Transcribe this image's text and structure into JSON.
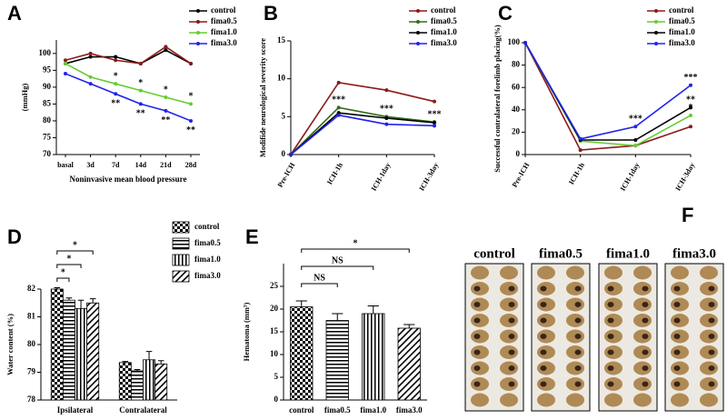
{
  "chart_data": [
    {
      "type": "line",
      "panel": "A",
      "categories": [
        "basal",
        "3d",
        "7d",
        "14d",
        "21d",
        "28d"
      ],
      "x_label": "Noninvasive mean blood pressure",
      "y_label": "(mmHg)",
      "ylim": [
        70,
        104
      ],
      "yticks": [
        70,
        75,
        80,
        85,
        90,
        95,
        100
      ],
      "series": [
        {
          "name": "control",
          "color": "#000000",
          "values": [
            97,
            99,
            99,
            97,
            101,
            97
          ]
        },
        {
          "name": "fima0.5",
          "color": "#8b1a1a",
          "values": [
            98,
            100,
            98,
            97,
            102,
            97
          ]
        },
        {
          "name": "fima1.0",
          "color": "#66cc33",
          "values": [
            97,
            93,
            91,
            89,
            87,
            85
          ],
          "marks": [
            null,
            null,
            "*",
            "*",
            "*",
            "*"
          ]
        },
        {
          "name": "fima3.0",
          "color": "#2222ee",
          "values": [
            94,
            91,
            88,
            85,
            83,
            80
          ],
          "marks": [
            null,
            null,
            "**",
            "**",
            "**",
            "**"
          ]
        }
      ]
    },
    {
      "type": "line",
      "panel": "B",
      "categories": [
        "Pre-ICH",
        "ICH-1h",
        "ICH-1day",
        "ICH-3day"
      ],
      "y_label": "Modifide neurological severity score",
      "ylim": [
        0,
        15
      ],
      "yticks": [
        0,
        5,
        10,
        15
      ],
      "series": [
        {
          "name": "control",
          "color": "#8b1a1a",
          "values": [
            0,
            9.5,
            8.5,
            7
          ]
        },
        {
          "name": "fima0.5",
          "color": "#336b1a",
          "values": [
            0,
            6.2,
            5,
            4.3
          ],
          "marks": [
            null,
            "***",
            "***",
            "***"
          ]
        },
        {
          "name": "fima1.0",
          "color": "#000000",
          "values": [
            0,
            5.5,
            4.8,
            4.2
          ]
        },
        {
          "name": "fima3.0",
          "color": "#2222ee",
          "values": [
            0,
            5.2,
            4,
            3.8
          ]
        }
      ]
    },
    {
      "type": "line",
      "panel": "C",
      "categories": [
        "Pre-ICH",
        "ICH-1h",
        "ICH-1day",
        "ICH-3day"
      ],
      "y_label": "Successful contralateral forelimb placing(%)",
      "ylim": [
        0,
        100
      ],
      "yticks": [
        0,
        20,
        40,
        60,
        80,
        100
      ],
      "series": [
        {
          "name": "control",
          "color": "#8b1a1a",
          "values": [
            100,
            4,
            8,
            25
          ]
        },
        {
          "name": "fima0.5",
          "color": "#66cc33",
          "values": [
            100,
            12,
            8,
            35
          ],
          "marks": [
            null,
            null,
            null,
            "*"
          ]
        },
        {
          "name": "fima1.0",
          "color": "#000000",
          "values": [
            100,
            13,
            13,
            42
          ],
          "marks": [
            null,
            null,
            null,
            "**"
          ]
        },
        {
          "name": "fima3.0",
          "color": "#2222ee",
          "values": [
            100,
            14,
            25,
            62
          ],
          "marks": [
            null,
            null,
            "***",
            "***"
          ]
        }
      ]
    },
    {
      "type": "grouped_bar",
      "panel": "D",
      "categories": [
        "Ipsilateral",
        "Contralateral"
      ],
      "y_label": "Water content (%)",
      "ylim": [
        78,
        82
      ],
      "yticks": [
        78,
        79,
        80,
        81,
        82
      ],
      "series": [
        {
          "name": "control",
          "pattern": "checker",
          "values": [
            82.0,
            79.35
          ],
          "errors": [
            0.05,
            0.04
          ]
        },
        {
          "name": "fima0.5",
          "pattern": "hstripe",
          "values": [
            81.6,
            79.05
          ],
          "errors": [
            0.08,
            0.05
          ]
        },
        {
          "name": "fima1.0",
          "pattern": "vstripe",
          "values": [
            81.3,
            79.45
          ],
          "errors": [
            0.3,
            0.3
          ]
        },
        {
          "name": "fima3.0",
          "pattern": "diag",
          "values": [
            81.5,
            79.3
          ],
          "errors": [
            0.15,
            0.12
          ]
        }
      ],
      "comparisons": [
        {
          "category": "Ipsilateral",
          "from": "control",
          "to": "fima0.5",
          "label": "*"
        },
        {
          "category": "Ipsilateral",
          "from": "control",
          "to": "fima1.0",
          "label": "*"
        },
        {
          "category": "Ipsilateral",
          "from": "control",
          "to": "fima3.0",
          "label": "*"
        }
      ]
    },
    {
      "type": "bar",
      "panel": "E",
      "categories": [
        "control",
        "fima0.5",
        "fima1.0",
        "fima3.0"
      ],
      "y_label": "Hematoma (mm³)",
      "ylim": [
        0,
        30
      ],
      "yticks": [
        0,
        5,
        10,
        15,
        20,
        25
      ],
      "values": [
        20.5,
        17.5,
        19,
        15.8
      ],
      "errors": [
        1.3,
        1.5,
        1.7,
        0.8
      ],
      "patterns": [
        "checker",
        "hstripe",
        "vstripe",
        "diag"
      ],
      "comparisons": [
        {
          "from": "control",
          "to": "fima0.5",
          "label": "NS"
        },
        {
          "from": "control",
          "to": "fima1.0",
          "label": "NS"
        },
        {
          "from": "control",
          "to": "fima3.0",
          "label": "*"
        }
      ]
    },
    {
      "type": "photo",
      "panel": "F",
      "labels": [
        "control",
        "fima0.5",
        "fima1.0",
        "fima3.0"
      ]
    }
  ]
}
